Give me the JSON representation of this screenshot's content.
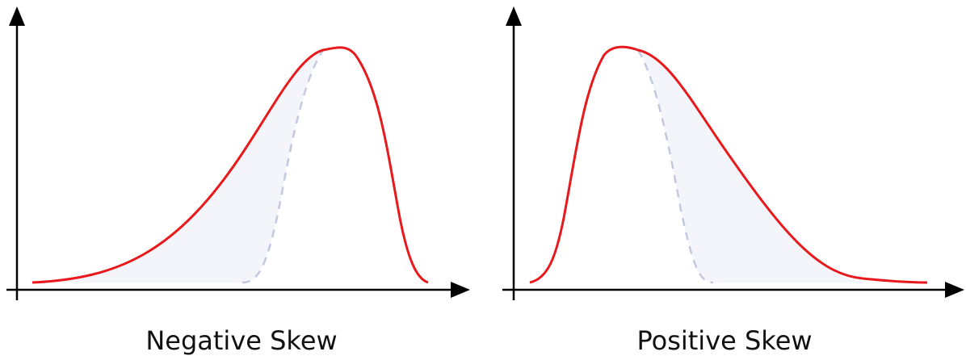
{
  "colors": {
    "curve": "#e8191c",
    "reference_curve": "#c4c8e0",
    "shade": "#f4f5fa",
    "axis": "#000000"
  },
  "panels": [
    {
      "caption": "Negative Skew"
    },
    {
      "caption": "Positive Skew"
    }
  ]
}
